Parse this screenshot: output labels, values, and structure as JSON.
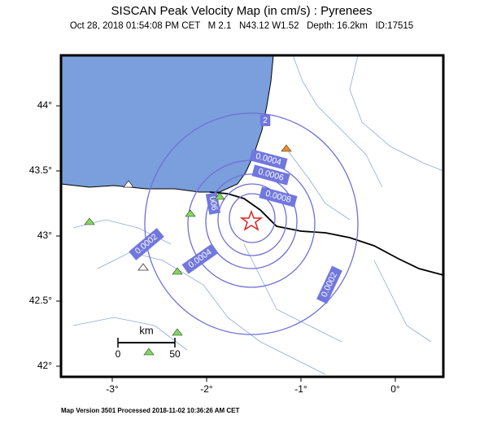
{
  "title": "SISCAN Peak Velocity Map (in cm/s) : Pyrenees",
  "subtitle": "Oct 28, 2018 01:54:08 PM CET   M 2.1   N43.12 W1.52   Depth: 16.2km   ID:17515",
  "lon_ticks": [
    {
      "value": -3,
      "label": "-3°"
    },
    {
      "value": -2,
      "label": "-2°"
    },
    {
      "value": -1,
      "label": "-1°"
    },
    {
      "value": 0,
      "label": "0°"
    }
  ],
  "lat_ticks": [
    {
      "value": 44,
      "label": "44°"
    },
    {
      "value": 43.5,
      "label": "43.5°"
    },
    {
      "value": 43,
      "label": "43°"
    },
    {
      "value": 42.5,
      "label": "42.5°"
    },
    {
      "value": 42,
      "label": "42°"
    }
  ],
  "contour_labels": [
    "2",
    "0.0004",
    "0.0006",
    "0.0008",
    "006",
    "0.0002",
    "0.0004",
    "0.0002"
  ],
  "scale_bar": {
    "unit": "km",
    "start": "0",
    "end": "50"
  },
  "footer": "Map Version 3501 Processed 2018-11-02 10:36:26 AM CET"
}
